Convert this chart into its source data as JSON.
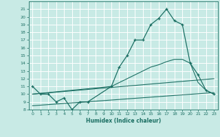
{
  "xlabel": "Humidex (Indice chaleur)",
  "bg_color": "#c8eae5",
  "grid_color": "#ffffff",
  "line_color": "#1a6e62",
  "xlim": [
    -0.5,
    23.5
  ],
  "ylim": [
    8,
    22
  ],
  "xtick_labels": [
    "0",
    "1",
    "2",
    "3",
    "4",
    "5",
    "6",
    "7",
    "8",
    "9",
    "10",
    "11",
    "12",
    "13",
    "14",
    "15",
    "16",
    "17",
    "18",
    "19",
    "20",
    "21",
    "22",
    "23"
  ],
  "xticks": [
    0,
    1,
    2,
    3,
    4,
    5,
    6,
    7,
    8,
    9,
    10,
    11,
    12,
    13,
    14,
    15,
    16,
    17,
    18,
    19,
    20,
    21,
    22,
    23
  ],
  "yticks": [
    8,
    9,
    10,
    11,
    12,
    13,
    14,
    15,
    16,
    17,
    18,
    19,
    20,
    21
  ],
  "ytick_labels": [
    "8",
    "9",
    "10",
    "11",
    "12",
    "13",
    "14",
    "15",
    "16",
    "17",
    "18",
    "19",
    "20",
    "21"
  ],
  "line1_x": [
    0,
    1,
    2,
    3,
    4,
    5,
    6,
    7,
    10,
    11,
    12,
    13,
    14,
    15,
    16,
    17,
    18,
    19,
    20,
    21,
    22,
    23
  ],
  "line1_y": [
    11,
    10,
    10,
    9,
    9.5,
    8,
    9,
    9,
    11,
    13.5,
    15,
    17,
    17,
    19,
    19.8,
    21,
    19.5,
    19,
    14,
    12.5,
    10.5,
    10
  ],
  "line2_x": [
    0,
    10,
    11,
    12,
    13,
    14,
    15,
    16,
    17,
    18,
    19,
    20,
    21,
    22,
    23
  ],
  "line2_y": [
    10,
    11,
    11.5,
    12,
    12.5,
    13,
    13.5,
    13.8,
    14.2,
    14.5,
    14.5,
    14,
    11.5,
    10.5,
    10
  ],
  "line3_x": [
    0,
    23
  ],
  "line3_y": [
    10,
    12
  ],
  "line4_x": [
    0,
    23
  ],
  "line4_y": [
    8.5,
    10.2
  ]
}
